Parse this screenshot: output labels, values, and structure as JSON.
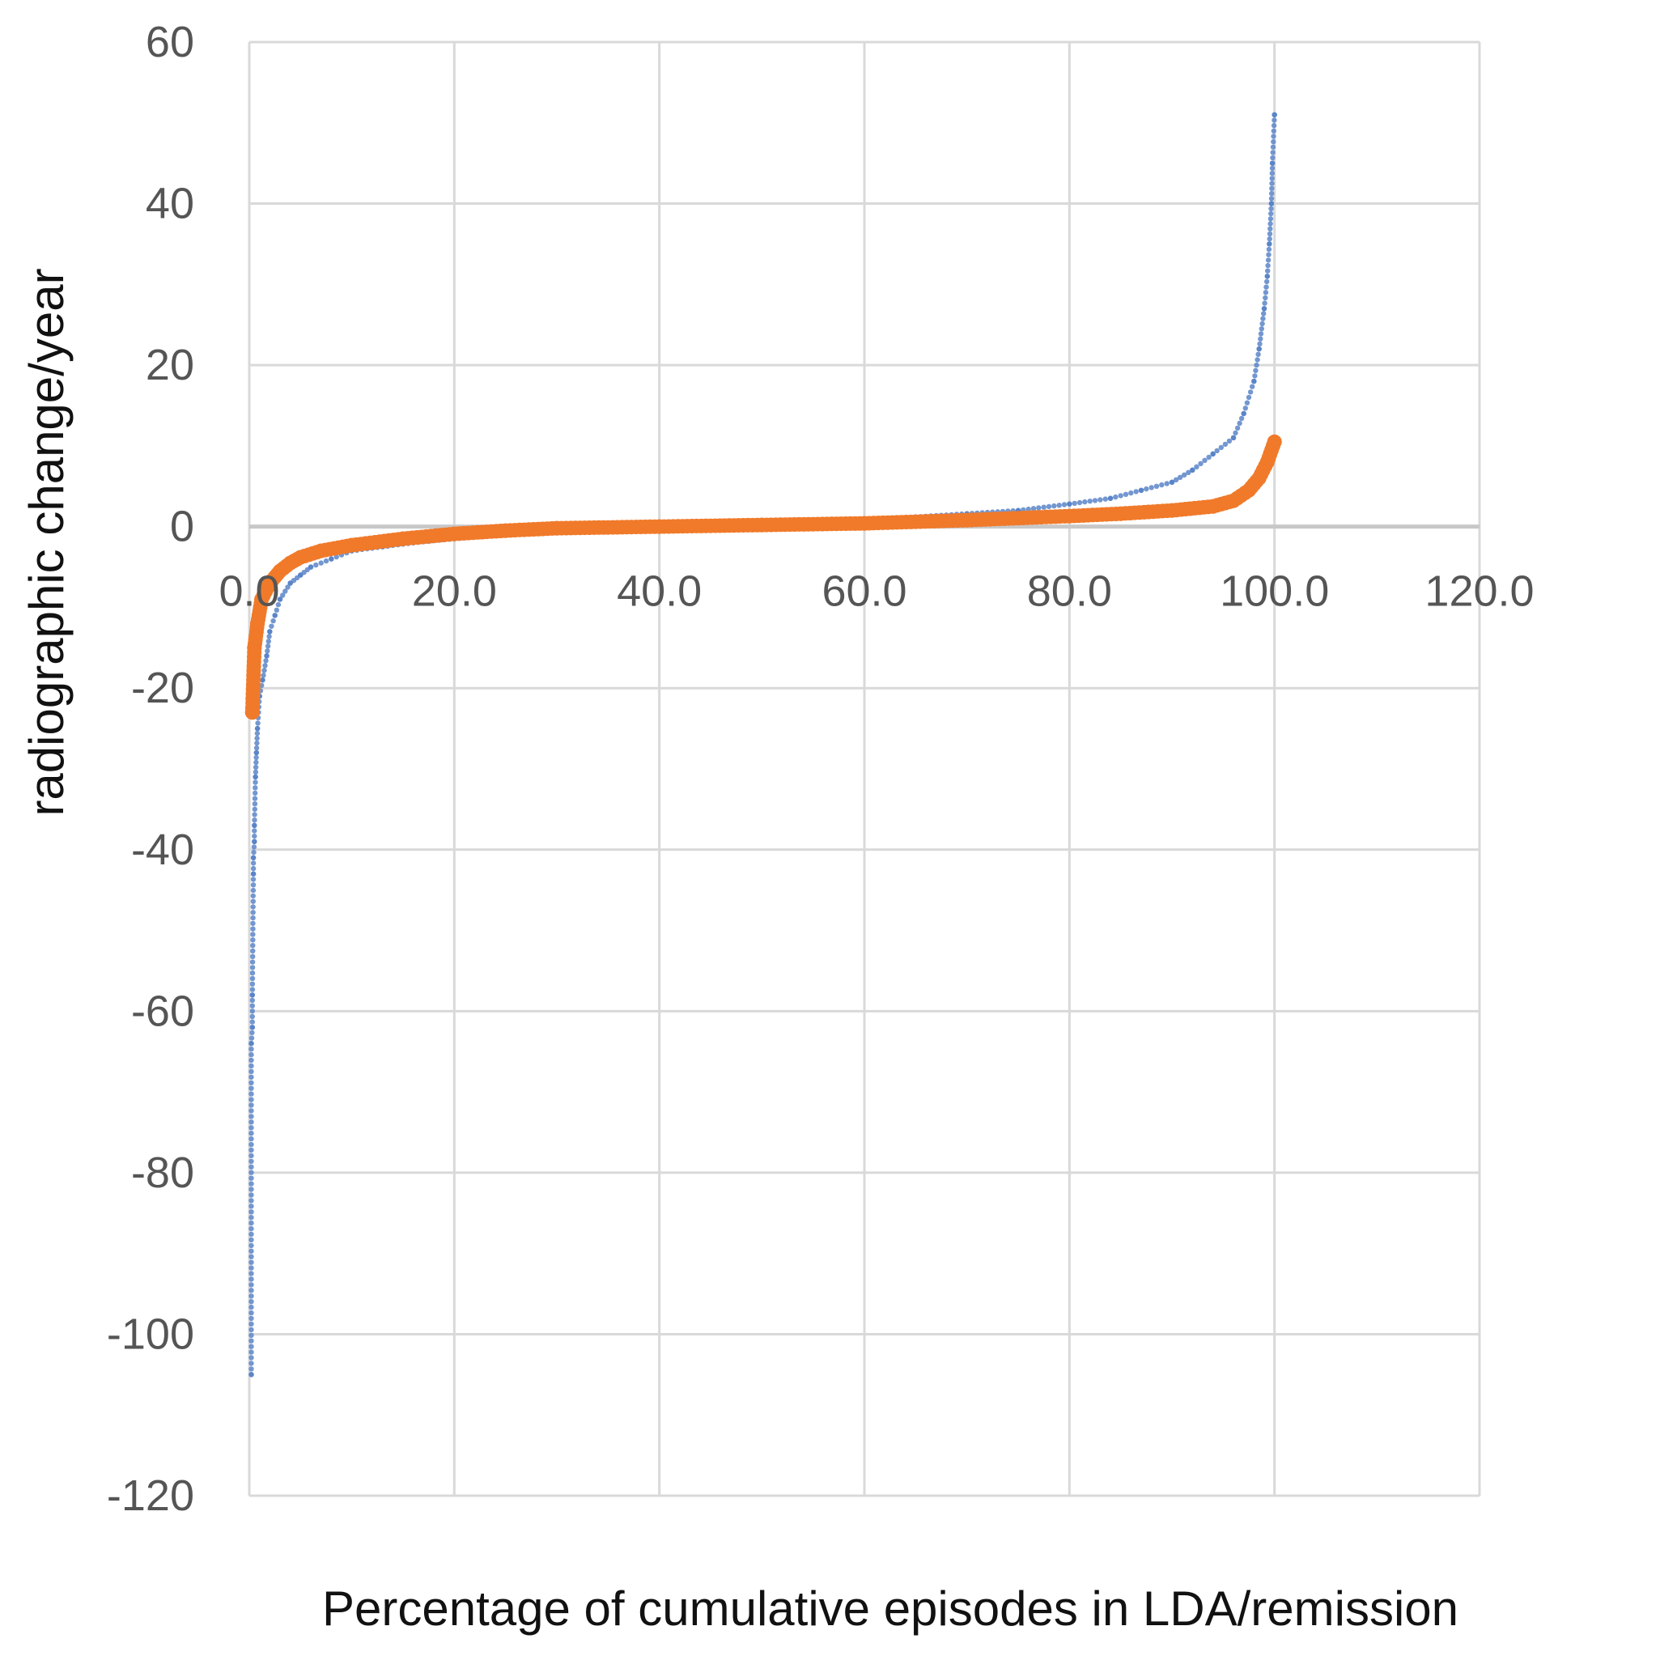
{
  "chart_data": {
    "type": "scatter",
    "title": "",
    "xlabel": "Percentage of cumulative episodes in LDA/remission",
    "ylabel": "radiographic change/year",
    "xlim": [
      0,
      120
    ],
    "ylim": [
      -120,
      60
    ],
    "x_ticks": [
      0,
      20,
      40,
      60,
      80,
      100,
      120
    ],
    "x_tick_labels": [
      "0.0",
      "20.0",
      "40.0",
      "60.0",
      "80.0",
      "100.0",
      "120.0"
    ],
    "y_ticks": [
      60,
      40,
      20,
      0,
      -20,
      -40,
      -60,
      -80,
      -100,
      -120
    ],
    "y_tick_labels": [
      "60",
      "40",
      "20",
      "0",
      "-20",
      "-40",
      "-60",
      "-80",
      "-100",
      "-120"
    ],
    "grid": true,
    "legend": "none",
    "series": [
      {
        "color": "#5b85c8",
        "marker_size": "small",
        "points": [
          [
            0.2,
            -105
          ],
          [
            0.2,
            -64
          ],
          [
            0.3,
            -62
          ],
          [
            0.3,
            -58
          ],
          [
            0.4,
            -43
          ],
          [
            0.4,
            -41
          ],
          [
            0.5,
            -39
          ],
          [
            0.5,
            -37
          ],
          [
            0.6,
            -31
          ],
          [
            0.7,
            -28
          ],
          [
            0.8,
            -25
          ],
          [
            1.0,
            -21
          ],
          [
            1.3,
            -19
          ],
          [
            1.7,
            -16
          ],
          [
            2.0,
            -13
          ],
          [
            2.5,
            -11
          ],
          [
            3.0,
            -9
          ],
          [
            4.0,
            -7
          ],
          [
            5.0,
            -6
          ],
          [
            6.0,
            -5
          ],
          [
            8.0,
            -4
          ],
          [
            10.0,
            -3
          ],
          [
            13.0,
            -2.5
          ],
          [
            16.0,
            -2
          ],
          [
            20.0,
            -1.5
          ],
          [
            25.0,
            -1
          ],
          [
            30.0,
            -0.5
          ],
          [
            35.0,
            -0.2
          ],
          [
            40.0,
            0
          ],
          [
            45.0,
            0.2
          ],
          [
            50.0,
            0.4
          ],
          [
            55.0,
            0.6
          ],
          [
            60.0,
            0.8
          ],
          [
            65.0,
            1.2
          ],
          [
            70.0,
            1.6
          ],
          [
            75.0,
            2.0
          ],
          [
            80.0,
            2.8
          ],
          [
            84.0,
            3.5
          ],
          [
            87.0,
            4.5
          ],
          [
            90.0,
            5.5
          ],
          [
            92.0,
            7
          ],
          [
            94.0,
            9
          ],
          [
            96.0,
            11
          ],
          [
            97.0,
            14
          ],
          [
            98.0,
            18
          ],
          [
            98.5,
            22
          ],
          [
            99.0,
            27
          ],
          [
            99.3,
            31
          ],
          [
            99.5,
            35
          ],
          [
            99.7,
            40
          ],
          [
            99.8,
            45
          ],
          [
            100.0,
            51
          ]
        ]
      },
      {
        "color": "#f07a2a",
        "marker_size": "large",
        "points": [
          [
            0.3,
            -23
          ],
          [
            0.5,
            -15
          ],
          [
            0.8,
            -12
          ],
          [
            1.2,
            -9
          ],
          [
            2.0,
            -7
          ],
          [
            3.0,
            -5.5
          ],
          [
            4.0,
            -4.5
          ],
          [
            5.0,
            -3.8
          ],
          [
            7.0,
            -3.0
          ],
          [
            10.0,
            -2.3
          ],
          [
            15.0,
            -1.5
          ],
          [
            20.0,
            -0.9
          ],
          [
            25.0,
            -0.5
          ],
          [
            30.0,
            -0.2
          ],
          [
            40.0,
            0
          ],
          [
            50.0,
            0.2
          ],
          [
            60.0,
            0.4
          ],
          [
            70.0,
            0.8
          ],
          [
            80.0,
            1.3
          ],
          [
            85.0,
            1.6
          ],
          [
            90.0,
            2.0
          ],
          [
            94.0,
            2.5
          ],
          [
            96.0,
            3.2
          ],
          [
            97.5,
            4.5
          ],
          [
            98.5,
            6
          ],
          [
            99.3,
            8
          ],
          [
            100.0,
            10.5
          ]
        ]
      }
    ]
  }
}
